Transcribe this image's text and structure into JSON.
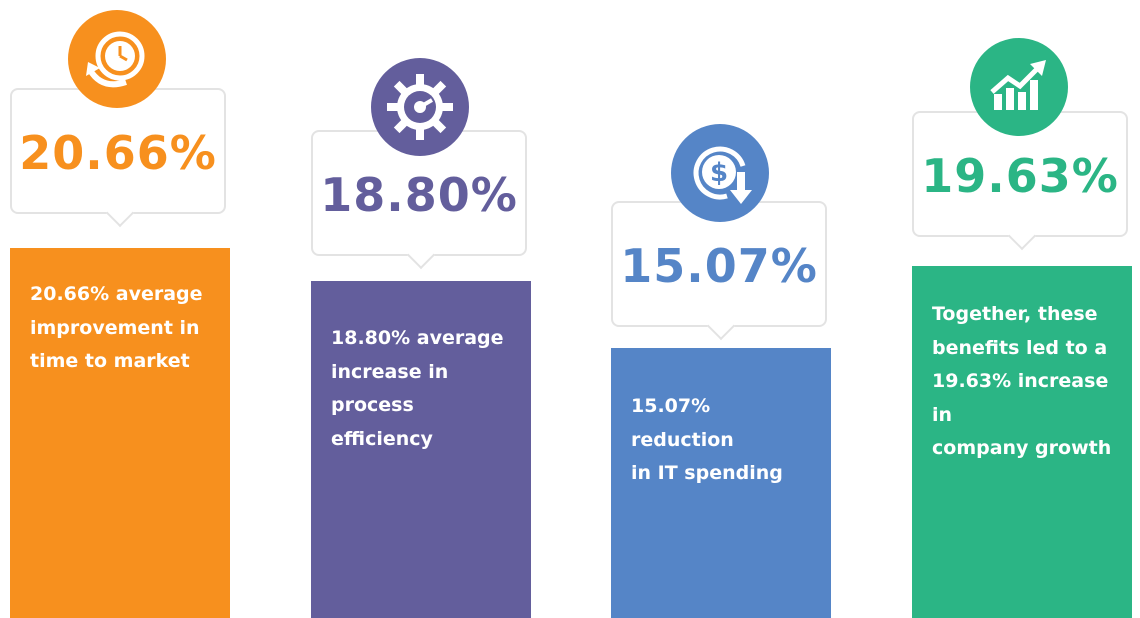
{
  "chart_data": {
    "type": "bar",
    "categories": [
      "20.66% average improvement in time to market",
      "18.80% average increase in process efficiency",
      "15.07% reduction in IT spending",
      "Together, these benefits led to a 19.63% increase in company growth"
    ],
    "values": [
      20.66,
      18.8,
      15.07,
      19.63
    ],
    "ylim": [
      0,
      20.66
    ],
    "grid": false,
    "legend": "none"
  },
  "items": [
    {
      "pct": "20.66%",
      "text": "20.66% average\nimprovement in\ntime to market",
      "color": "#f7901e",
      "icon": "clock-refresh-icon"
    },
    {
      "pct": "18.80%",
      "text": "18.80% average\nincrease in process\nefficiency",
      "color": "#635e9c",
      "icon": "gear-gauge-icon"
    },
    {
      "pct": "15.07%",
      "text": "15.07% reduction\nin IT spending",
      "color": "#5585c7",
      "icon": "dollar-down-icon"
    },
    {
      "pct": "19.63%",
      "text": "Together, these\nbenefits led to a\n19.63% increase in\ncompany growth",
      "color": "#2bb585",
      "icon": "growth-chart-icon"
    }
  ]
}
